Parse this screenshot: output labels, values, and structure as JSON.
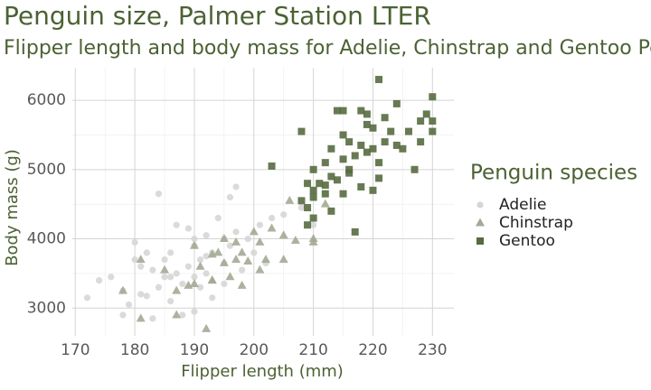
{
  "chart_data": {
    "type": "scatter",
    "title": "Penguin size, Palmer Station LTER",
    "subtitle": "Flipper length and body mass for Adelie, Chinstrap and Gentoo Penguins",
    "x_label": "Flipper length (mm)",
    "y_label": "Body mass (g)",
    "legend_title": "Penguin species",
    "legend": "right",
    "xlim": [
      169.5,
      233.6
    ],
    "ylim": [
      2600,
      6470
    ],
    "xticks": [
      170,
      180,
      190,
      200,
      210,
      220,
      230
    ],
    "yticks": [
      3000,
      4000,
      5000,
      6000
    ],
    "grid": true,
    "minor_grid": true,
    "series": [
      {
        "name": "Adelie",
        "color": "#d6d6d6",
        "marker": "circle",
        "x": [
          172,
          174,
          176,
          178,
          178,
          180,
          180,
          181,
          181,
          182,
          182,
          183,
          184,
          184,
          185,
          185,
          186,
          186,
          187,
          187,
          188,
          188,
          189,
          189,
          190,
          190,
          190,
          191,
          191,
          192,
          192,
          193,
          193,
          194,
          195,
          195,
          196,
          196,
          197,
          197,
          198,
          199,
          200,
          201,
          202,
          203,
          205,
          208,
          210,
          179,
          183,
          190,
          186,
          192,
          195
        ],
        "values": [
          3150,
          3400,
          3450,
          3250,
          2900,
          3700,
          3950,
          3600,
          3200,
          3800,
          3175,
          3550,
          3300,
          4650,
          3700,
          3450,
          3800,
          3100,
          4200,
          3500,
          3350,
          2900,
          3600,
          4150,
          3900,
          3450,
          4000,
          3700,
          3300,
          3500,
          4050,
          3800,
          3150,
          4300,
          3650,
          4000,
          3900,
          4600,
          4100,
          4750,
          3550,
          4000,
          3800,
          4200,
          3650,
          4300,
          4350,
          4450,
          4200,
          3050,
          2850,
          2950,
          3450,
          3750,
          3350
        ]
      },
      {
        "name": "Chinstrap",
        "color": "#a2aa94",
        "marker": "triangle",
        "x": [
          178,
          181,
          181,
          185,
          187,
          187,
          190,
          190,
          191,
          192,
          193,
          193,
          194,
          195,
          195,
          196,
          197,
          197,
          198,
          198,
          199,
          200,
          201,
          201,
          202,
          203,
          205,
          205,
          206,
          207,
          210,
          212,
          210,
          193,
          189
        ],
        "values": [
          3250,
          3700,
          2850,
          3550,
          3250,
          2900,
          3900,
          3350,
          3600,
          2700,
          3775,
          3400,
          3800,
          3650,
          4000,
          3450,
          3700,
          3950,
          3800,
          3325,
          3675,
          4100,
          3550,
          3950,
          3700,
          4150,
          4050,
          3700,
          4550,
          3975,
          4000,
          4500,
          3950,
          3400,
          3325
        ]
      },
      {
        "name": "Gentoo",
        "color": "#566b40",
        "marker": "square",
        "x": [
          203,
          208,
          208,
          209,
          209,
          209,
          210,
          210,
          210,
          211,
          212,
          212,
          213,
          213,
          213,
          214,
          214,
          215,
          215,
          215,
          216,
          216,
          216,
          217,
          217,
          218,
          218,
          219,
          219,
          220,
          220,
          220,
          221,
          221,
          222,
          222,
          223,
          224,
          225,
          226,
          227,
          228,
          228,
          229,
          230,
          230,
          230,
          221,
          212,
          218,
          219,
          224,
          215,
          210
        ],
        "values": [
          5050,
          5550,
          4550,
          4200,
          4800,
          4450,
          4600,
          5000,
          4300,
          4800,
          5100,
          4650,
          4900,
          5300,
          4400,
          4850,
          5850,
          5150,
          4650,
          5500,
          4950,
          5400,
          5000,
          4100,
          5200,
          5350,
          4750,
          5650,
          5250,
          5600,
          4700,
          5300,
          6300,
          5100,
          5750,
          5400,
          5550,
          5950,
          5300,
          5550,
          5000,
          5400,
          5700,
          5800,
          5700,
          6050,
          5550,
          4875,
          4775,
          5850,
          5800,
          5350,
          5850,
          4700
        ]
      }
    ]
  }
}
